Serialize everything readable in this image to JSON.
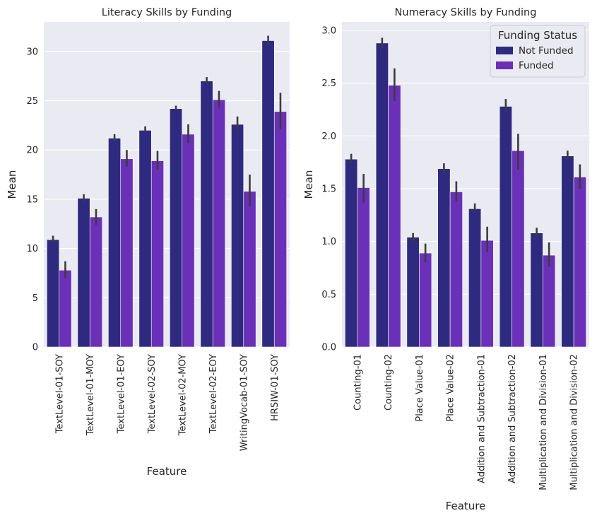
{
  "chart_data": [
    {
      "type": "bar",
      "title": "Literacy Skills by Funding",
      "xlabel": "Feature",
      "ylabel": "Mean",
      "ylim": [
        0,
        33
      ],
      "yticks": [
        "0",
        "5",
        "10",
        "15",
        "20",
        "25",
        "30"
      ],
      "categories": [
        "TextLevel-01-SOY",
        "TextLevel-01-MOY",
        "TextLevel-01-EOY",
        "TextLevel-02-SOY",
        "TextLevel-02-MOY",
        "TextLevel-02-EOY",
        "WritingVocab-01-SOY",
        "HRSIW-01-SOY"
      ],
      "series": [
        {
          "name": "Not Funded",
          "values": [
            10.9,
            15.1,
            21.2,
            22.0,
            24.2,
            27.0,
            22.6,
            31.1
          ],
          "ci_low": [
            10.6,
            14.8,
            20.9,
            21.8,
            24.0,
            26.8,
            22.1,
            30.7
          ],
          "ci_high": [
            11.3,
            15.5,
            21.6,
            22.4,
            24.5,
            27.4,
            23.4,
            31.6
          ]
        },
        {
          "name": "Funded",
          "values": [
            7.8,
            13.2,
            19.1,
            18.9,
            21.6,
            25.1,
            15.8,
            23.9
          ],
          "ci_low": [
            7.0,
            12.4,
            18.3,
            18.0,
            20.7,
            24.3,
            14.3,
            22.1
          ],
          "ci_high": [
            8.7,
            14.0,
            20.0,
            19.9,
            22.6,
            26.0,
            17.5,
            25.8
          ]
        }
      ],
      "grid": true
    },
    {
      "type": "bar",
      "title": "Numeracy Skills by Funding",
      "xlabel": "Feature",
      "ylabel": "Mean",
      "ylim": [
        0,
        3.08
      ],
      "yticks": [
        "0.0",
        "0.5",
        "1.0",
        "1.5",
        "2.0",
        "2.5",
        "3.0"
      ],
      "categories": [
        "Counting-01",
        "Counting-02",
        "Place Value-01",
        "Place Value-02",
        "Addition and Subtraction-01",
        "Addition and Subtraction-02",
        "Multiplication and Division-01",
        "Multiplication and Division-02"
      ],
      "series": [
        {
          "name": "Not Funded",
          "values": [
            1.78,
            2.88,
            1.04,
            1.69,
            1.31,
            2.28,
            1.08,
            1.81
          ],
          "ci_low": [
            1.74,
            2.83,
            1.0,
            1.65,
            1.27,
            2.23,
            1.04,
            1.77
          ],
          "ci_high": [
            1.83,
            2.93,
            1.08,
            1.74,
            1.36,
            2.35,
            1.13,
            1.86
          ]
        },
        {
          "name": "Funded",
          "values": [
            1.51,
            2.48,
            0.89,
            1.47,
            1.01,
            1.86,
            0.87,
            1.61
          ],
          "ci_low": [
            1.37,
            2.33,
            0.8,
            1.38,
            0.9,
            1.68,
            0.76,
            1.5
          ],
          "ci_high": [
            1.64,
            2.64,
            0.98,
            1.57,
            1.14,
            2.02,
            0.99,
            1.73
          ]
        }
      ],
      "grid": true,
      "legend": {
        "title": "Funding Status",
        "position": "top-right"
      }
    }
  ],
  "colors": {
    "not_funded": "#2e2a7f",
    "funded": "#6a30b8",
    "panel_bg": "#eaeaf2",
    "grid": "#ffffff",
    "errorbar": "#3c3c3c",
    "text": "#262626"
  }
}
